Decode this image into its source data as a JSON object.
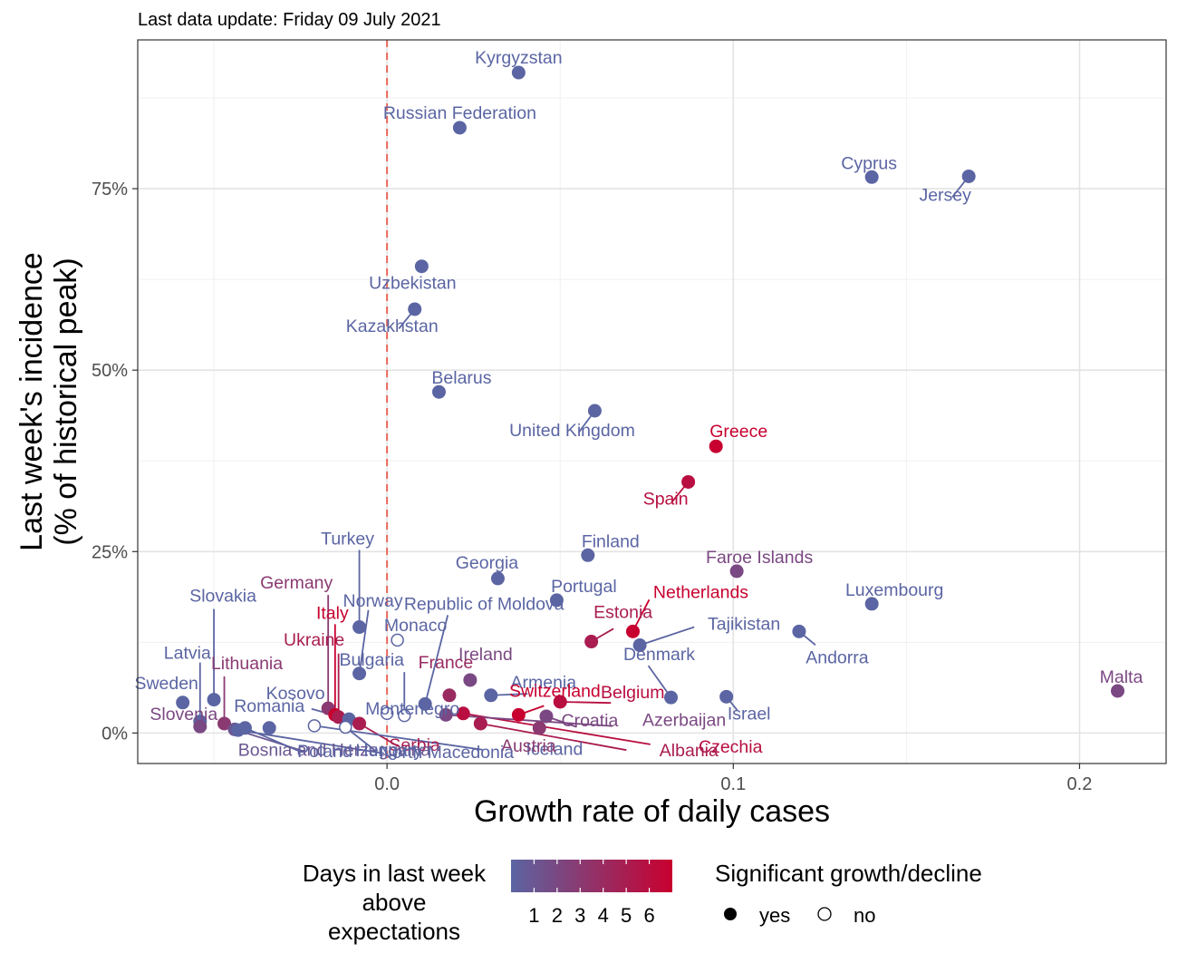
{
  "subtitle": "Last data update: Friday 09 July 2021",
  "chart_data": {
    "type": "scatter",
    "xlabel": "Growth rate of daily cases",
    "ylabel": [
      "Last week's incidence",
      "(% of historical peak)"
    ],
    "xlim": [
      -0.072,
      0.225
    ],
    "ylim": [
      -0.042,
      0.955
    ],
    "x_ticks": [
      {
        "value": 0.0,
        "label": "0.0"
      },
      {
        "value": 0.1,
        "label": "0.1"
      },
      {
        "value": 0.2,
        "label": "0.2"
      }
    ],
    "y_ticks": [
      {
        "value": 0.0,
        "label": "0%"
      },
      {
        "value": 0.25,
        "label": "25%"
      },
      {
        "value": 0.5,
        "label": "50%"
      },
      {
        "value": 0.75,
        "label": "75%"
      }
    ],
    "reference_line": {
      "axis": "x",
      "value": 0.0,
      "style": "dashed",
      "color": "#e8675b"
    },
    "grid": true,
    "color_scale": {
      "low": "#5b65a3",
      "high": "#c8002f",
      "min": 0,
      "max": 7
    },
    "legend": {
      "position": "bottom",
      "color_title": [
        "Days in last week",
        "above",
        "expectations"
      ],
      "color_labels": [
        "1",
        "2",
        "3",
        "4",
        "5",
        "6"
      ],
      "shape_title": "Significant growth/decline",
      "shape_labels": [
        "yes",
        "no"
      ]
    },
    "points": [
      {
        "name": "Kyrgyzstan",
        "x": 0.038,
        "y": 0.91,
        "days": 0,
        "sig": true
      },
      {
        "name": "Russian Federation",
        "x": 0.021,
        "y": 0.834,
        "days": 0,
        "sig": true
      },
      {
        "name": "Cyprus",
        "x": 0.14,
        "y": 0.766,
        "days": 0,
        "sig": true
      },
      {
        "name": "Jersey",
        "x": 0.168,
        "y": 0.767,
        "days": 0,
        "sig": true
      },
      {
        "name": "Uzbekistan",
        "x": 0.01,
        "y": 0.643,
        "days": 0,
        "sig": true
      },
      {
        "name": "Kazakhstan",
        "x": 0.008,
        "y": 0.584,
        "days": 0,
        "sig": true
      },
      {
        "name": "Belarus",
        "x": 0.015,
        "y": 0.47,
        "days": 0,
        "sig": true
      },
      {
        "name": "United Kingdom",
        "x": 0.06,
        "y": 0.444,
        "days": 0,
        "sig": true
      },
      {
        "name": "Greece",
        "x": 0.095,
        "y": 0.395,
        "days": 7,
        "sig": true
      },
      {
        "name": "Spain",
        "x": 0.087,
        "y": 0.346,
        "days": 6,
        "sig": true
      },
      {
        "name": "Finland",
        "x": 0.058,
        "y": 0.245,
        "days": 0,
        "sig": true
      },
      {
        "name": "Faroe Islands",
        "x": 0.101,
        "y": 0.223,
        "days": 2,
        "sig": true
      },
      {
        "name": "Georgia",
        "x": 0.032,
        "y": 0.213,
        "days": 0,
        "sig": true
      },
      {
        "name": "Portugal",
        "x": 0.049,
        "y": 0.183,
        "days": 0,
        "sig": true
      },
      {
        "name": "Luxembourg",
        "x": 0.14,
        "y": 0.178,
        "days": 0,
        "sig": true
      },
      {
        "name": "Turkey",
        "x": -0.008,
        "y": 0.146,
        "days": 0,
        "sig": true
      },
      {
        "name": "Netherlands",
        "x": 0.071,
        "y": 0.14,
        "days": 7,
        "sig": true
      },
      {
        "name": "Andorra",
        "x": 0.119,
        "y": 0.14,
        "days": 0,
        "sig": true
      },
      {
        "name": "Monaco",
        "x": 0.003,
        "y": 0.128,
        "days": 0,
        "sig": false
      },
      {
        "name": "Estonia",
        "x": 0.059,
        "y": 0.126,
        "days": 5,
        "sig": true
      },
      {
        "name": "Tajikistan",
        "x": 0.073,
        "y": 0.121,
        "days": 0,
        "sig": true
      },
      {
        "name": "Norway",
        "x": -0.008,
        "y": 0.082,
        "days": 0,
        "sig": true
      },
      {
        "name": "Ireland",
        "x": 0.024,
        "y": 0.073,
        "days": 2,
        "sig": true
      },
      {
        "name": "Malta",
        "x": 0.211,
        "y": 0.058,
        "days": 2,
        "sig": true
      },
      {
        "name": "Armenia",
        "x": 0.03,
        "y": 0.052,
        "days": 0,
        "sig": true
      },
      {
        "name": "France",
        "x": 0.018,
        "y": 0.052,
        "days": 4,
        "sig": true
      },
      {
        "name": "Denmark",
        "x": 0.082,
        "y": 0.049,
        "days": 0,
        "sig": true
      },
      {
        "name": "Israel",
        "x": 0.098,
        "y": 0.05,
        "days": 0,
        "sig": true
      },
      {
        "name": "Sweden",
        "x": -0.059,
        "y": 0.042,
        "days": 0,
        "sig": true
      },
      {
        "name": "Slovakia",
        "x": -0.05,
        "y": 0.046,
        "days": 0,
        "sig": true
      },
      {
        "name": "Belgium",
        "x": 0.05,
        "y": 0.043,
        "days": 6,
        "sig": true
      },
      {
        "name": "Republic of Moldova",
        "x": 0.011,
        "y": 0.04,
        "days": 0,
        "sig": true
      },
      {
        "name": "Germany",
        "x": -0.017,
        "y": 0.034,
        "days": 3,
        "sig": true
      },
      {
        "name": "Italy",
        "x": -0.015,
        "y": 0.025,
        "days": 7,
        "sig": true
      },
      {
        "name": "Ukraine",
        "x": -0.014,
        "y": 0.022,
        "days": 5,
        "sig": true
      },
      {
        "name": "Montenegro",
        "x": 0.0,
        "y": 0.027,
        "days": 0,
        "sig": false
      },
      {
        "name": "Bulgaria",
        "x": 0.005,
        "y": 0.024,
        "days": 0,
        "sig": false
      },
      {
        "name": "Switzerland",
        "x": 0.038,
        "y": 0.025,
        "days": 7,
        "sig": true
      },
      {
        "name": "Czechia",
        "x": 0.022,
        "y": 0.027,
        "days": 6,
        "sig": true
      },
      {
        "name": "Azerbaijan",
        "x": 0.017,
        "y": 0.025,
        "days": 2,
        "sig": true
      },
      {
        "name": "Croatia",
        "x": 0.046,
        "y": 0.023,
        "days": 2,
        "sig": true
      },
      {
        "name": "Kosovo",
        "x": -0.011,
        "y": 0.019,
        "days": 0,
        "sig": true
      },
      {
        "name": "Latvia",
        "x": -0.054,
        "y": 0.016,
        "days": 0,
        "sig": true
      },
      {
        "name": "Lithuania",
        "x": -0.047,
        "y": 0.013,
        "days": 3,
        "sig": true
      },
      {
        "name": "Serbia",
        "x": -0.008,
        "y": 0.013,
        "days": 5,
        "sig": true
      },
      {
        "name": "Albania",
        "x": 0.027,
        "y": 0.013,
        "days": 5,
        "sig": true
      },
      {
        "name": "Slovenia",
        "x": -0.054,
        "y": 0.009,
        "days": 2,
        "sig": true
      },
      {
        "name": "Iceland",
        "x": -0.021,
        "y": 0.01,
        "days": 0,
        "sig": false
      },
      {
        "name": "Romania",
        "x": -0.034,
        "y": 0.007,
        "days": 0,
        "sig": true
      },
      {
        "name": "Austria",
        "x": 0.044,
        "y": 0.007,
        "days": 3,
        "sig": true
      },
      {
        "name": "Bosnia and Herzegovina",
        "x": -0.044,
        "y": 0.005,
        "days": 1,
        "sig": true
      },
      {
        "name": "Hungary",
        "x": -0.012,
        "y": 0.008,
        "days": 0,
        "sig": false
      },
      {
        "name": "Poland",
        "x": -0.041,
        "y": 0.007,
        "days": 0,
        "sig": true
      },
      {
        "name": "North Macedonia",
        "x": -0.043,
        "y": 0.004,
        "days": 0,
        "sig": true
      }
    ]
  }
}
